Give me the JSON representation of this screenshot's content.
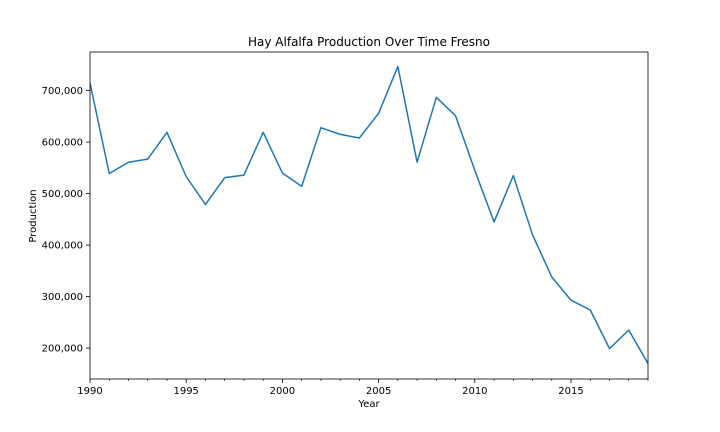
{
  "chart_data": {
    "type": "line",
    "title": "Hay Alfalfa Production Over Time Fresno",
    "xlabel": "Year",
    "ylabel": "Production",
    "xlim": [
      1990,
      2019
    ],
    "ylim": [
      140000,
      775000
    ],
    "xticks": [
      1990,
      1995,
      2000,
      2005,
      2010,
      2015
    ],
    "xtick_labels": [
      "1990",
      "1995",
      "2000",
      "2005",
      "2010",
      "2015"
    ],
    "yticks": [
      200000,
      300000,
      400000,
      500000,
      600000,
      700000
    ],
    "ytick_labels": [
      "200,000",
      "300,000",
      "400,000",
      "500,000",
      "600,000",
      "700,000"
    ],
    "grid": false,
    "color": "#1f77b4",
    "series": [
      {
        "x": [
          1990,
          1991,
          1992,
          1993,
          1994,
          1995,
          1996,
          1997,
          1998,
          1999,
          2000,
          2001,
          2002,
          2003,
          2004,
          2005,
          2006,
          2007,
          2008,
          2009,
          2010,
          2011,
          2012,
          2013,
          2014,
          2015,
          2016,
          2017,
          2018,
          2019
        ],
        "values": [
          715000,
          539000,
          561000,
          567000,
          619000,
          533000,
          479000,
          531000,
          536000,
          619000,
          540000,
          514000,
          628000,
          615000,
          608000,
          656000,
          747000,
          561000,
          687000,
          651000,
          545000,
          445000,
          535000,
          420000,
          338000,
          293000,
          274000,
          199000,
          235000,
          170000
        ]
      }
    ]
  }
}
